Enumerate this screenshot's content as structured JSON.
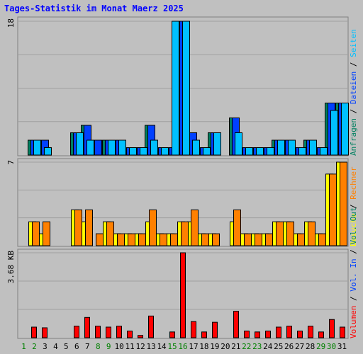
{
  "title": "Tages-Statistik im Monat Maerz 2025",
  "colors": {
    "background": "#c0c0c0",
    "panel": "#c0c0c0",
    "grid": "#a0a0a0",
    "title": "#0000ff",
    "anfragen": "#008060",
    "dateien": "#0040ff",
    "seiten": "#00c0ff",
    "besuche": "#ffff00",
    "rechner": "#ff8000",
    "volumen": "#ff0000",
    "sep": "#000000",
    "weekday": "#000000",
    "weekend": "#008000"
  },
  "chart_data": [
    {
      "type": "bar",
      "ymax_label": "18",
      "ylim": [
        0,
        18
      ],
      "legend": [
        {
          "label": "Anfragen",
          "color": "#008060"
        },
        {
          "sep": " / "
        },
        {
          "label": "Dateien",
          "color": "#0040ff"
        },
        {
          "sep": " / "
        },
        {
          "label": "Seiten",
          "color": "#00c0ff"
        }
      ],
      "categories": [
        "1",
        "2",
        "3",
        "4",
        "5",
        "6",
        "7",
        "8",
        "9",
        "10",
        "11",
        "12",
        "13",
        "14",
        "15",
        "16",
        "17",
        "18",
        "19",
        "20",
        "21",
        "22",
        "23",
        "24",
        "25",
        "26",
        "27",
        "28",
        "29",
        "30",
        "31"
      ],
      "series": [
        {
          "name": "Anfragen",
          "color": "#008060",
          "values": [
            0,
            2,
            2,
            0,
            0,
            3,
            4,
            2,
            2,
            2,
            1,
            1,
            4,
            1,
            1,
            18,
            3,
            1,
            3,
            0,
            5,
            1,
            1,
            1,
            2,
            2,
            1,
            2,
            1,
            7,
            7
          ]
        },
        {
          "name": "Dateien",
          "color": "#0040ff",
          "values": [
            0,
            2,
            2,
            0,
            0,
            3,
            4,
            2,
            2,
            2,
            1,
            1,
            4,
            1,
            1,
            18,
            3,
            1,
            3,
            0,
            5,
            1,
            1,
            1,
            2,
            2,
            1,
            2,
            1,
            7,
            7
          ]
        },
        {
          "name": "Seiten",
          "color": "#00c0ff",
          "values": [
            0,
            2,
            1,
            0,
            0,
            3,
            2,
            0,
            2,
            2,
            1,
            1,
            2,
            1,
            18,
            18,
            2,
            1,
            3,
            0,
            3,
            1,
            1,
            1,
            2,
            2,
            1,
            2,
            1,
            6,
            7
          ]
        }
      ]
    },
    {
      "type": "bar",
      "ymax_label": "7",
      "ylim": [
        0,
        7
      ],
      "legend": [
        {
          "label": "Besuche",
          "color": "#ffff00"
        },
        {
          "sep": " / "
        },
        {
          "label": "Rechner",
          "color": "#ff8000"
        }
      ],
      "categories": [
        "1",
        "2",
        "3",
        "4",
        "5",
        "6",
        "7",
        "8",
        "9",
        "10",
        "11",
        "12",
        "13",
        "14",
        "15",
        "16",
        "17",
        "18",
        "19",
        "20",
        "21",
        "22",
        "23",
        "24",
        "25",
        "26",
        "27",
        "28",
        "29",
        "30",
        "31"
      ],
      "series": [
        {
          "name": "Besuche",
          "color": "#ffff00",
          "values": [
            0,
            2,
            1,
            0,
            0,
            3,
            2,
            0,
            2,
            1,
            1,
            1,
            2,
            1,
            1,
            2,
            2,
            1,
            1,
            0,
            2,
            1,
            1,
            1,
            2,
            2,
            1,
            2,
            1,
            6,
            7
          ]
        },
        {
          "name": "Rechner",
          "color": "#ff8000",
          "values": [
            0,
            2,
            2,
            0,
            0,
            3,
            3,
            1,
            2,
            1,
            1,
            1,
            3,
            1,
            1,
            2,
            3,
            1,
            1,
            0,
            3,
            1,
            1,
            1,
            2,
            2,
            1,
            2,
            1,
            6,
            7
          ]
        }
      ]
    },
    {
      "type": "bar",
      "ymax_label": "3.68 KB",
      "ylim": [
        0,
        3.68
      ],
      "legend": [
        {
          "label": "Volumen",
          "color": "#ff0000"
        },
        {
          "sep": " / "
        },
        {
          "label": "Vol. In",
          "color": "#0040ff"
        },
        {
          "sep": " / "
        },
        {
          "label": "Vol. Out",
          "color": "#008060"
        }
      ],
      "categories": [
        "1",
        "2",
        "3",
        "4",
        "5",
        "6",
        "7",
        "8",
        "9",
        "10",
        "11",
        "12",
        "13",
        "14",
        "15",
        "16",
        "17",
        "18",
        "19",
        "20",
        "21",
        "22",
        "23",
        "24",
        "25",
        "26",
        "27",
        "28",
        "29",
        "30",
        "31"
      ],
      "series": [
        {
          "name": "Volumen",
          "color": "#ff0000",
          "values": [
            0,
            0.46,
            0.43,
            0,
            0,
            0.5,
            0.88,
            0.5,
            0.46,
            0.5,
            0.29,
            0.1,
            0.94,
            0,
            0.25,
            3.68,
            0.7,
            0.25,
            0.67,
            0,
            1.15,
            0.29,
            0.25,
            0.29,
            0.46,
            0.5,
            0.29,
            0.5,
            0.25,
            0.79,
            0.46
          ]
        }
      ]
    }
  ],
  "days": [
    {
      "label": "1",
      "weekend": true
    },
    {
      "label": "2",
      "weekend": true
    },
    {
      "label": "3",
      "weekend": false
    },
    {
      "label": "4",
      "weekend": false
    },
    {
      "label": "5",
      "weekend": false
    },
    {
      "label": "6",
      "weekend": false
    },
    {
      "label": "7",
      "weekend": false
    },
    {
      "label": "8",
      "weekend": true
    },
    {
      "label": "9",
      "weekend": true
    },
    {
      "label": "10",
      "weekend": false
    },
    {
      "label": "11",
      "weekend": false
    },
    {
      "label": "12",
      "weekend": false
    },
    {
      "label": "13",
      "weekend": false
    },
    {
      "label": "14",
      "weekend": false
    },
    {
      "label": "15",
      "weekend": true
    },
    {
      "label": "16",
      "weekend": true
    },
    {
      "label": "17",
      "weekend": false
    },
    {
      "label": "18",
      "weekend": false
    },
    {
      "label": "19",
      "weekend": false
    },
    {
      "label": "20",
      "weekend": false
    },
    {
      "label": "21",
      "weekend": false
    },
    {
      "label": "22",
      "weekend": true
    },
    {
      "label": "23",
      "weekend": true
    },
    {
      "label": "24",
      "weekend": false
    },
    {
      "label": "25",
      "weekend": false
    },
    {
      "label": "26",
      "weekend": false
    },
    {
      "label": "27",
      "weekend": false
    },
    {
      "label": "28",
      "weekend": false
    },
    {
      "label": "29",
      "weekend": true
    },
    {
      "label": "30",
      "weekend": true
    },
    {
      "label": "31",
      "weekend": false
    }
  ]
}
